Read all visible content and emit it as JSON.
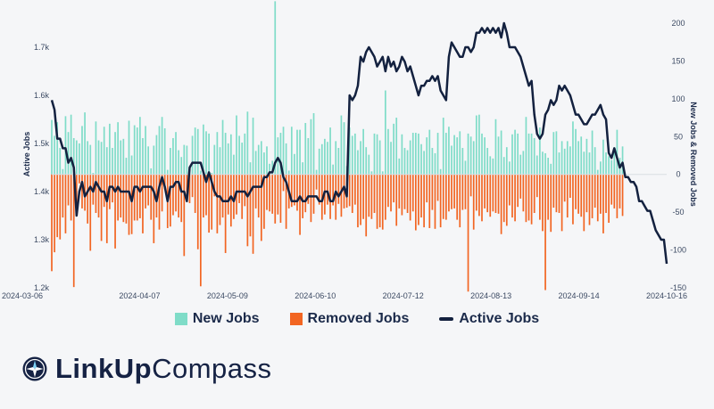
{
  "chart_data": {
    "type": "bar+line",
    "x_ticks": [
      "2024-03-06",
      "2024-04-07",
      "2024-05-09",
      "2024-06-10",
      "2024-07-12",
      "2024-08-13",
      "2024-09-14",
      "2024-10-16"
    ],
    "left_axis": {
      "title": "Active Jobs",
      "ticks": [
        "1.2k",
        "1.3k",
        "1.4k",
        "1.5k",
        "1.6k",
        "1.7k"
      ],
      "range": [
        1200,
        1750
      ]
    },
    "right_axis": {
      "title": "New Jobs & Removed Jobs",
      "ticks": [
        "-150",
        "-100",
        "-50",
        "0",
        "50",
        "100",
        "150",
        "200"
      ],
      "range": [
        -150,
        200
      ]
    },
    "series": [
      {
        "name": "New Jobs",
        "color": "#7fdcc8",
        "axis": "right",
        "values": [
          72,
          51,
          69,
          35,
          7,
          77,
          56,
          79,
          48,
          45,
          41,
          64,
          82,
          44,
          39,
          2,
          70,
          45,
          43,
          63,
          36,
          67,
          35,
          56,
          69,
          45,
          47,
          22,
          71,
          25,
          65,
          62,
          76,
          48,
          64,
          37,
          8,
          38,
          52,
          64,
          76,
          61,
          6,
          35,
          48,
          56,
          32,
          23,
          39,
          38,
          7,
          51,
          62,
          60,
          5,
          66,
          57,
          54,
          2,
          39,
          56,
          36,
          72,
          55,
          41,
          53,
          26,
          78,
          51,
          42,
          54,
          83,
          16,
          75,
          31,
          39,
          44,
          29,
          37,
          14,
          18,
          229,
          49,
          55,
          63,
          41,
          5,
          63,
          27,
          59,
          59,
          16,
          68,
          48,
          73,
          81,
          6,
          34,
          40,
          47,
          43,
          62,
          13,
          44,
          35,
          78,
          69,
          11,
          62,
          51,
          54,
          32,
          44,
          60,
          36,
          26,
          4,
          54,
          53,
          45,
          4,
          111,
          60,
          43,
          67,
          75,
          21,
          53,
          35,
          32,
          45,
          55,
          55,
          54,
          40,
          31,
          49,
          59,
          35,
          28,
          55,
          7,
          75,
          55,
          63,
          38,
          52,
          49,
          57,
          35,
          18,
          54,
          50,
          44,
          78,
          79,
          54,
          49,
          35,
          24,
          21,
          73,
          50,
          58,
          23,
          36,
          17,
          53,
          59,
          54,
          26,
          31,
          76,
          54,
          54,
          48,
          25,
          62,
          30,
          28,
          22,
          14,
          56,
          57,
          29,
          44,
          34,
          44,
          37,
          70,
          60,
          44,
          50,
          30,
          47,
          29,
          58,
          36,
          6,
          17,
          46,
          29,
          24,
          19,
          36,
          59,
          22,
          37
        ]
      },
      {
        "name": "Removed Jobs",
        "color": "#f26522",
        "axis": "right",
        "values": [
          -128,
          -103,
          -83,
          -86,
          -57,
          -78,
          -41,
          -61,
          -149,
          -50,
          -12,
          -45,
          -48,
          -65,
          -101,
          -40,
          -51,
          -57,
          -88,
          -43,
          -91,
          -46,
          -37,
          -98,
          -61,
          -57,
          -63,
          -65,
          -80,
          -79,
          -61,
          -61,
          -58,
          -78,
          -45,
          -41,
          -60,
          -91,
          -57,
          -73,
          -49,
          -20,
          -71,
          -69,
          -54,
          -49,
          -57,
          -63,
          -108,
          -26,
          -38,
          -30,
          -51,
          -99,
          -148,
          -57,
          -54,
          -77,
          -73,
          -29,
          -78,
          -67,
          -57,
          -104,
          -53,
          -69,
          -59,
          -53,
          -38,
          -59,
          -42,
          -95,
          -82,
          -105,
          -45,
          -57,
          -88,
          -72,
          -47,
          -49,
          -52,
          -65,
          -53,
          -64,
          -22,
          -72,
          -45,
          -43,
          -41,
          -48,
          -80,
          -58,
          -50,
          -39,
          -63,
          -52,
          -20,
          -40,
          -60,
          -53,
          -40,
          -59,
          -41,
          -60,
          -39,
          -56,
          -45,
          -44,
          -42,
          -51,
          -40,
          -70,
          -67,
          -59,
          -82,
          -56,
          -59,
          -51,
          -72,
          -70,
          -73,
          -60,
          -43,
          -49,
          -37,
          -68,
          -45,
          -54,
          -46,
          -51,
          -61,
          -49,
          -74,
          -67,
          -57,
          -70,
          -37,
          -71,
          -47,
          -72,
          -35,
          -70,
          -59,
          -60,
          -49,
          -46,
          -45,
          -60,
          -70,
          -47,
          -46,
          -155,
          -29,
          -73,
          -48,
          -55,
          -62,
          -45,
          -50,
          -56,
          -49,
          -51,
          -52,
          -79,
          -63,
          -68,
          -41,
          -57,
          -62,
          -43,
          -32,
          -49,
          -63,
          -61,
          -66,
          -51,
          -30,
          -60,
          -75,
          -153,
          -60,
          -76,
          -44,
          -50,
          -51,
          -75,
          -36,
          -57,
          -31,
          -66,
          -46,
          -52,
          -56,
          -75,
          -50,
          -67,
          -58,
          -44,
          -62,
          -52,
          -78,
          -51,
          -64,
          -40,
          -45,
          -58,
          -45,
          -55
        ]
      },
      {
        "name": "Active Jobs",
        "color": "#13213f",
        "axis": "left",
        "values": [
          1590,
          1570,
          1510,
          1510,
          1490,
          1490,
          1460,
          1470,
          1450,
          1350,
          1400,
          1420,
          1390,
          1400,
          1410,
          1400,
          1420,
          1410,
          1400,
          1400,
          1380,
          1410,
          1410,
          1400,
          1410,
          1400,
          1400,
          1400,
          1400,
          1380,
          1410,
          1410,
          1400,
          1410,
          1410,
          1410,
          1410,
          1400,
          1380,
          1410,
          1430,
          1410,
          1380,
          1410,
          1410,
          1420,
          1420,
          1400,
          1400,
          1380,
          1450,
          1460,
          1460,
          1460,
          1460,
          1440,
          1420,
          1440,
          1420,
          1400,
          1390,
          1390,
          1380,
          1380,
          1380,
          1390,
          1380,
          1400,
          1400,
          1400,
          1400,
          1390,
          1400,
          1410,
          1410,
          1410,
          1410,
          1430,
          1430,
          1440,
          1440,
          1460,
          1470,
          1460,
          1430,
          1420,
          1400,
          1380,
          1380,
          1380,
          1390,
          1380,
          1380,
          1390,
          1390,
          1390,
          1390,
          1380,
          1380,
          1400,
          1400,
          1380,
          1380,
          1400,
          1390,
          1400,
          1410,
          1390,
          1600,
          1590,
          1600,
          1620,
          1680,
          1670,
          1690,
          1700,
          1690,
          1680,
          1660,
          1670,
          1680,
          1650,
          1680,
          1660,
          1670,
          1650,
          1660,
          1680,
          1670,
          1650,
          1660,
          1640,
          1620,
          1600,
          1620,
          1620,
          1630,
          1630,
          1640,
          1630,
          1640,
          1610,
          1600,
          1590,
          1680,
          1710,
          1700,
          1690,
          1680,
          1680,
          1700,
          1700,
          1690,
          1700,
          1730,
          1730,
          1740,
          1730,
          1740,
          1730,
          1740,
          1730,
          1740,
          1720,
          1750,
          1730,
          1700,
          1700,
          1700,
          1690,
          1680,
          1660,
          1640,
          1620,
          1630,
          1560,
          1520,
          1510,
          1520,
          1560,
          1570,
          1590,
          1580,
          1590,
          1620,
          1610,
          1620,
          1610,
          1600,
          1580,
          1560,
          1560,
          1550,
          1540,
          1540,
          1550,
          1560,
          1560,
          1570,
          1580,
          1560,
          1550,
          1480,
          1470,
          1490,
          1470,
          1450,
          1460,
          1430,
          1430,
          1420,
          1420,
          1410,
          1380,
          1380,
          1370,
          1360,
          1360,
          1340,
          1320,
          1310,
          1300,
          1300,
          1250
        ]
      }
    ]
  },
  "legend": {
    "new_jobs": "New Jobs",
    "removed_jobs": "Removed Jobs",
    "active_jobs": "Active Jobs"
  },
  "logo": {
    "text_bold": "LinkUp",
    "text_light": "Compass"
  }
}
